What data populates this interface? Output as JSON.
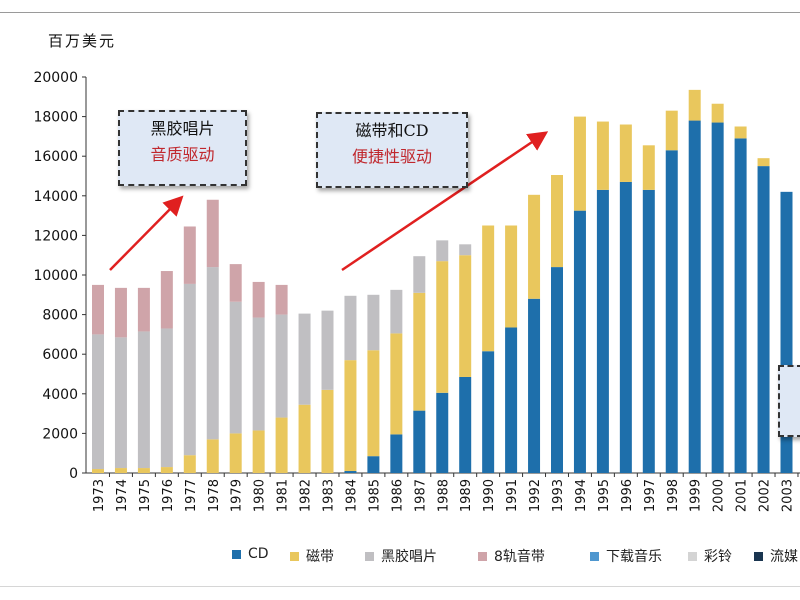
{
  "unit_label": "百万美元",
  "annotations": {
    "vinyl": {
      "line1": "黑胶唱片",
      "line2": "音质驱动"
    },
    "tape": {
      "line1": "磁带和CD",
      "line2": "便捷性驱动"
    }
  },
  "legend": [
    {
      "label": "CD",
      "color": "#1e6fab"
    },
    {
      "label": "磁带",
      "color": "#e9c75d"
    },
    {
      "label": "黑胶唱片",
      "color": "#c0bfc2"
    },
    {
      "label": "8轨音带",
      "color": "#cfa4a9"
    },
    {
      "label": "下载音乐",
      "color": "#4f97cf"
    },
    {
      "label": "彩铃",
      "color": "#d4d4d4"
    },
    {
      "label": "流媒",
      "color": "#1a3550"
    }
  ],
  "chart_data": {
    "type": "bar",
    "stacked": true,
    "ylabel": "百万美元",
    "ylim": [
      0,
      20000
    ],
    "yticks": [
      0,
      2000,
      4000,
      6000,
      8000,
      10000,
      12000,
      14000,
      16000,
      18000,
      20000
    ],
    "categories": [
      "1973",
      "1974",
      "1975",
      "1976",
      "1977",
      "1978",
      "1979",
      "1980",
      "1981",
      "1982",
      "1983",
      "1984",
      "1985",
      "1986",
      "1987",
      "1988",
      "1989",
      "1990",
      "1991",
      "1992",
      "1993",
      "1994",
      "1995",
      "1996",
      "1997",
      "1998",
      "1999",
      "2000",
      "2001",
      "2002",
      "2003"
    ],
    "series": [
      {
        "name": "CD",
        "color": "#1e6fab",
        "values": [
          0,
          0,
          0,
          0,
          0,
          0,
          0,
          0,
          0,
          0,
          0,
          100,
          850,
          1950,
          3150,
          4050,
          4850,
          6150,
          7350,
          8800,
          10400,
          13250,
          14300,
          14700,
          14300,
          16300,
          17800,
          17700,
          16900,
          15500,
          14200
        ]
      },
      {
        "name": "磁带",
        "color": "#e9c75d",
        "values": [
          200,
          250,
          250,
          300,
          900,
          1700,
          2000,
          2150,
          2800,
          3450,
          4200,
          5600,
          5350,
          5100,
          5950,
          6650,
          6150,
          6350,
          5150,
          5250,
          4650,
          4750,
          3450,
          2900,
          2250,
          2000,
          1550,
          950,
          600,
          400,
          0
        ]
      },
      {
        "name": "黑胶唱片",
        "color": "#c0bfc2",
        "values": [
          6800,
          6600,
          6900,
          7000,
          8650,
          8700,
          6650,
          5700,
          5200,
          4600,
          4000,
          3250,
          2800,
          2200,
          1850,
          1050,
          550,
          0,
          0,
          0,
          0,
          0,
          0,
          0,
          0,
          0,
          0,
          0,
          0,
          0,
          0
        ]
      },
      {
        "name": "8轨音带",
        "color": "#cfa4a9",
        "values": [
          2500,
          2500,
          2200,
          2900,
          2900,
          3400,
          1900,
          1800,
          1500,
          0,
          0,
          0,
          0,
          0,
          0,
          0,
          0,
          0,
          0,
          0,
          0,
          0,
          0,
          0,
          0,
          0,
          0,
          0,
          0,
          0,
          0
        ]
      }
    ]
  }
}
